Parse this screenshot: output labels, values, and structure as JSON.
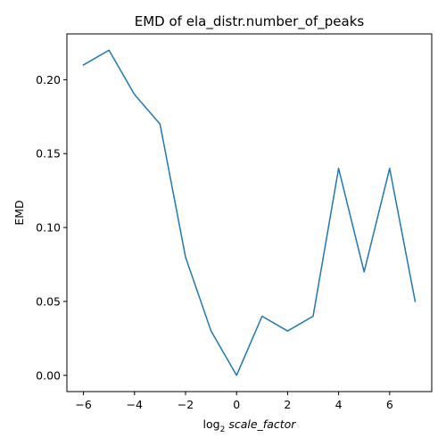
{
  "chart_data": {
    "type": "line",
    "title": "EMD of ela_distr.number_of_peaks",
    "xlabel_prefix": "log",
    "xlabel_sub": "2",
    "xlabel_italic": "scale_factor",
    "ylabel": "EMD",
    "xlim": [
      -6.65,
      7.65
    ],
    "ylim": [
      -0.011,
      0.231
    ],
    "xticks": [
      -6,
      -4,
      -2,
      0,
      2,
      4,
      6
    ],
    "xtick_labels": [
      "−6",
      "−4",
      "−2",
      "0",
      "2",
      "4",
      "6"
    ],
    "yticks": [
      0.0,
      0.05,
      0.1,
      0.15,
      0.2
    ],
    "ytick_labels": [
      "0.00",
      "0.05",
      "0.10",
      "0.15",
      "0.20"
    ],
    "grid": false,
    "series": [
      {
        "color": "#1f77b4",
        "x": [
          -6,
          -5,
          -4,
          -3,
          -2,
          -1,
          0,
          1,
          2,
          3,
          4,
          5,
          6,
          7
        ],
        "y": [
          0.21,
          0.22,
          0.19,
          0.17,
          0.08,
          0.03,
          0.0,
          0.04,
          0.03,
          0.04,
          0.14,
          0.07,
          0.14,
          0.05
        ]
      }
    ]
  }
}
